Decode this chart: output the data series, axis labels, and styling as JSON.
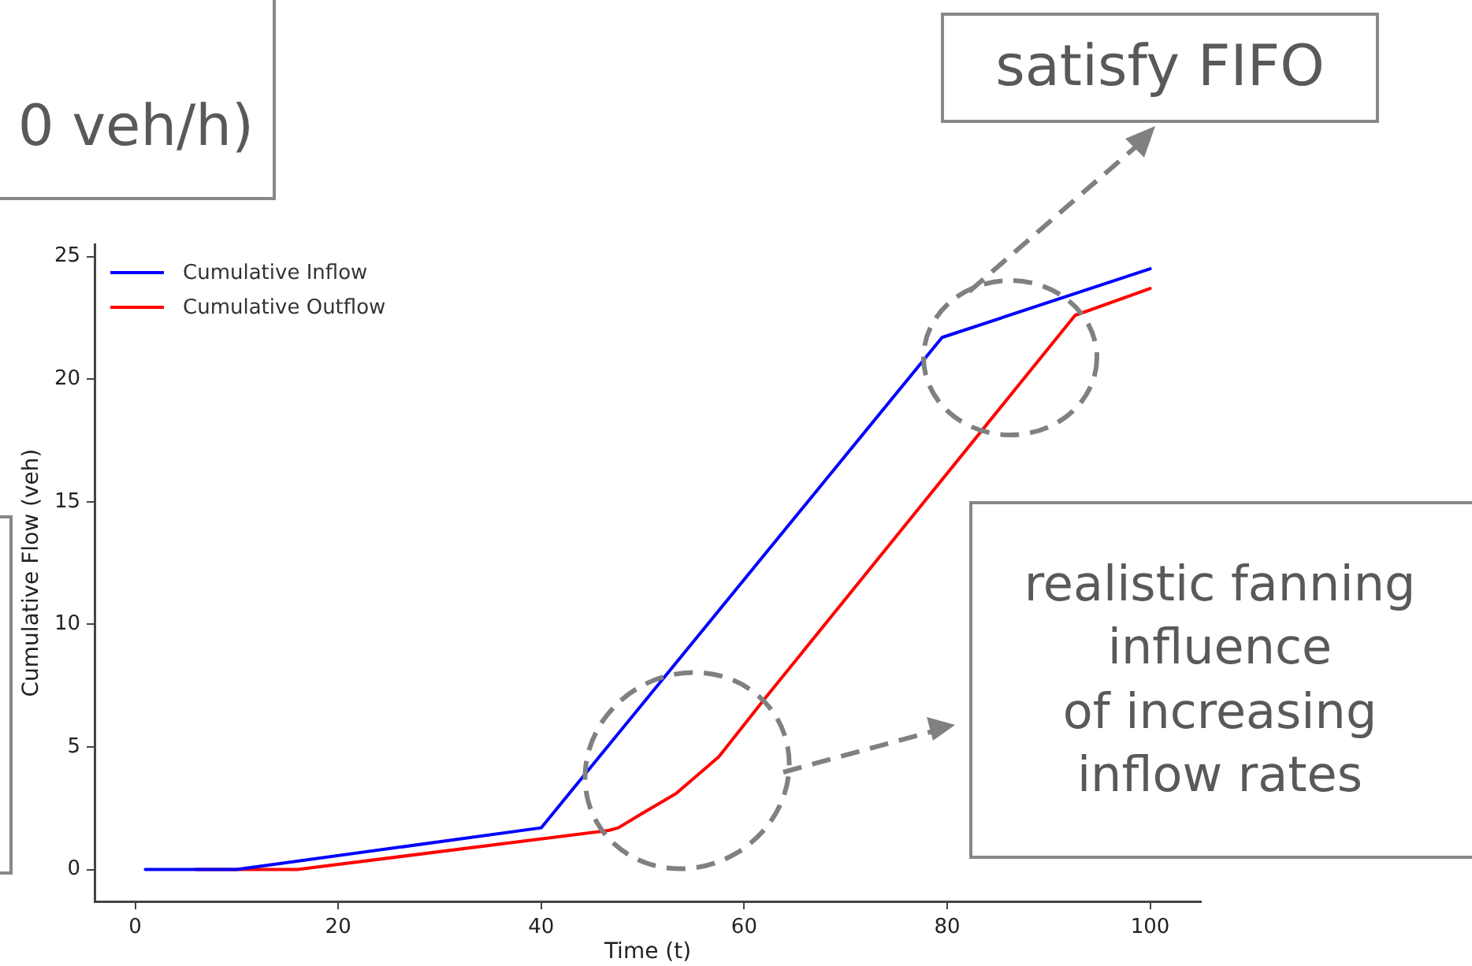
{
  "chart_data": {
    "type": "line",
    "xlabel": "Time (t)",
    "ylabel": "Cumulative Flow (veh)",
    "xlim": [
      -4,
      105
    ],
    "xticks": [
      0,
      20,
      40,
      60,
      80,
      100
    ],
    "ylim": [
      -1.3,
      25.5
    ],
    "yticks": [
      0,
      5,
      10,
      15,
      20,
      25
    ],
    "grid": false,
    "legend": "top left",
    "marker": "none",
    "line_style": "solid",
    "series": [
      {
        "name": "Cumulative Inflow",
        "color": "#0000ff",
        "x": [
          1,
          10,
          40,
          79.5,
          100
        ],
        "values": [
          0,
          0,
          1.7,
          21.7,
          24.5
        ]
      },
      {
        "name": "Cumulative Outflow",
        "color": "#ff0000",
        "x": [
          6,
          16,
          46.7,
          47.6,
          50,
          53.3,
          57.5,
          61.9,
          92.6,
          100
        ],
        "values": [
          0,
          0,
          1.6,
          1.7,
          2.3,
          3.1,
          4.6,
          6.9,
          22.6,
          23.7
        ]
      }
    ],
    "annotations": [
      "0 veh/h)",
      "satisfy FIFO",
      "realistic fanning\ninfluence\nof increasing\ninflow rates"
    ]
  }
}
